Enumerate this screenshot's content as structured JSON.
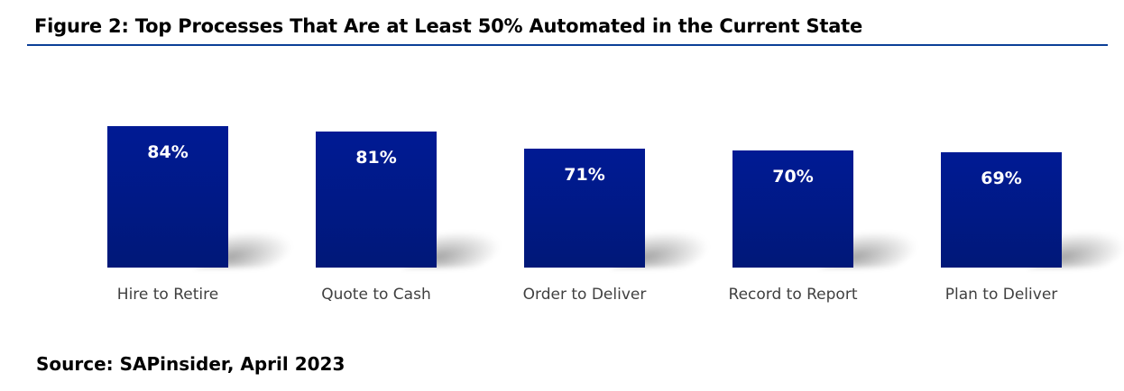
{
  "header": {
    "title": "Figure 2: Top Processes That Are at Least 50% Automated in the Current State"
  },
  "footer": {
    "source": "Source: SAPinsider, April 2023"
  },
  "colors": {
    "bar": "#001a94",
    "rule": "#0b3f97",
    "label_text": "#404040",
    "value_text": "#ffffff"
  },
  "bars": [
    {
      "category": "Hire to Retire",
      "label": "84%",
      "value": 84
    },
    {
      "category": "Quote to Cash",
      "label": "81%",
      "value": 81
    },
    {
      "category": "Order to Deliver",
      "label": "71%",
      "value": 71
    },
    {
      "category": "Record to Report",
      "label": "70%",
      "value": 70
    },
    {
      "category": "Plan to Deliver",
      "label": "69%",
      "value": 69
    }
  ],
  "chart_data": {
    "type": "bar",
    "title": "Figure 2: Top Processes That Are at Least 50% Automated in the Current State",
    "categories": [
      "Hire to Retire",
      "Quote to Cash",
      "Order to Deliver",
      "Record to Report",
      "Plan to Deliver"
    ],
    "values": [
      84,
      81,
      71,
      70,
      69
    ],
    "data_labels": [
      "84%",
      "81%",
      "71%",
      "70%",
      "69%"
    ],
    "xlabel": "",
    "ylabel": "",
    "unit": "%",
    "grid": false,
    "legend": null,
    "annotations": [
      "Source: SAPinsider, April 2023"
    ]
  }
}
